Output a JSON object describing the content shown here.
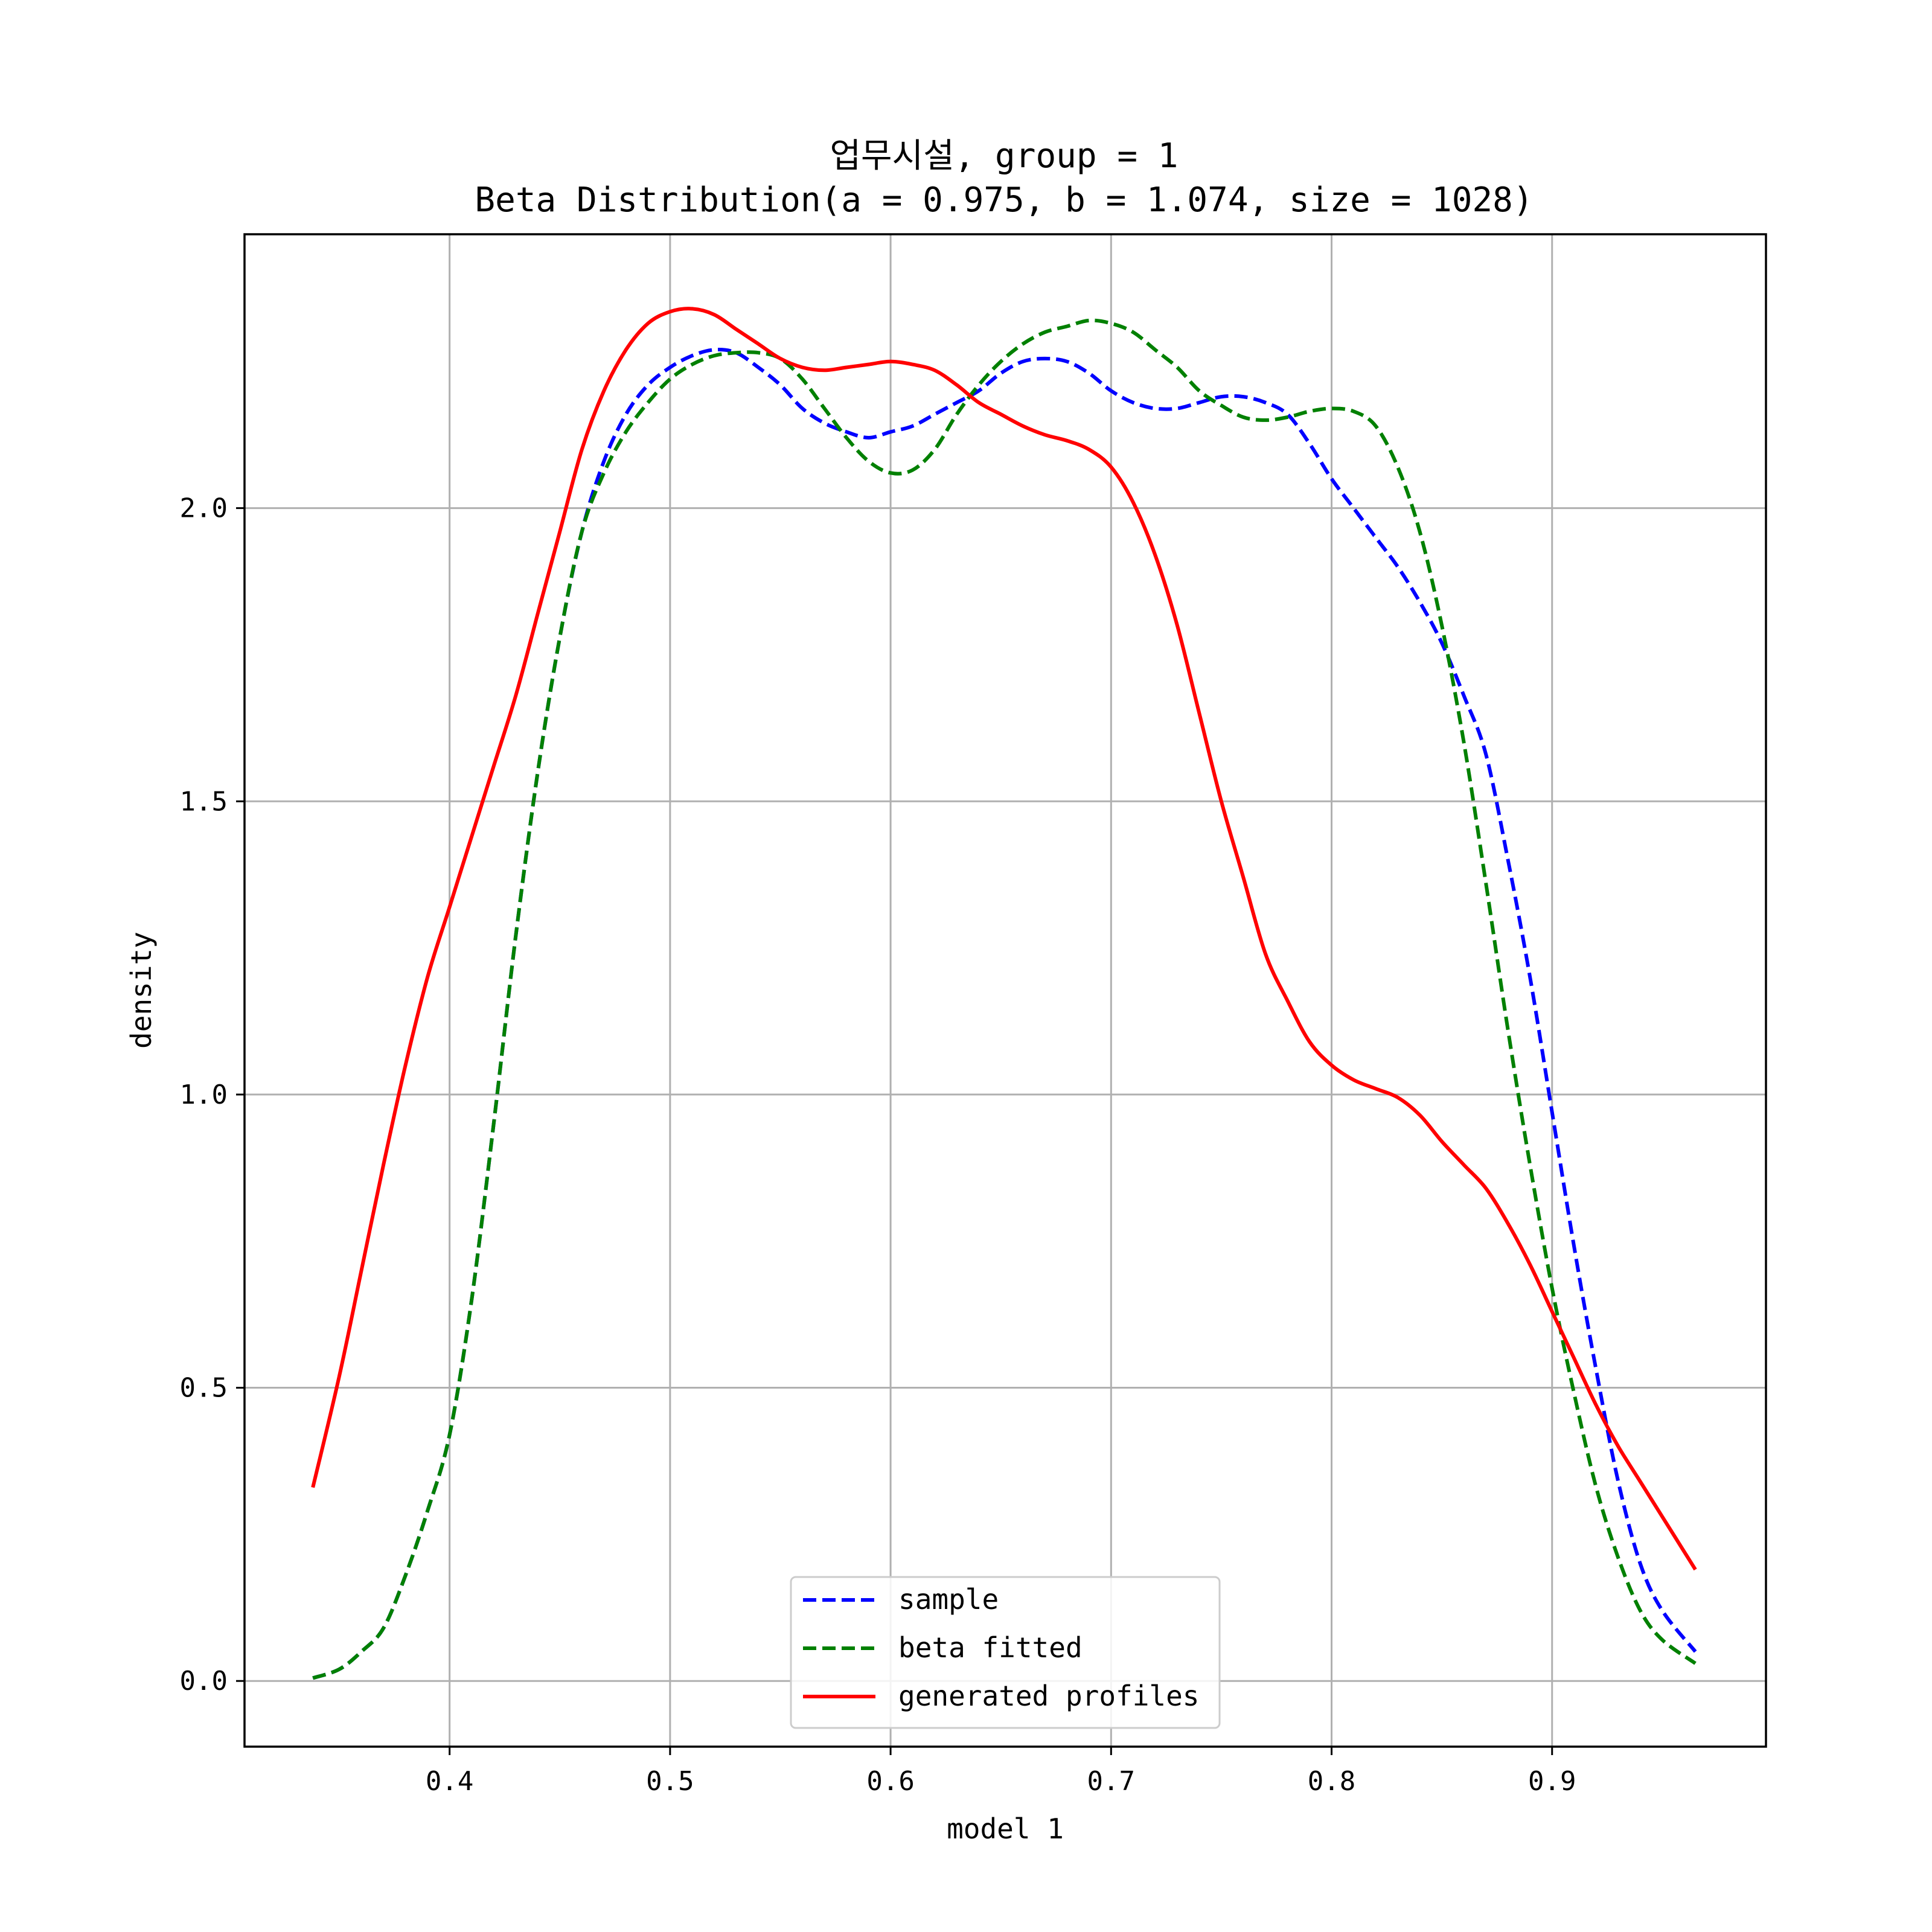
{
  "chart_data": {
    "type": "line",
    "title": "업무시설, group = 1",
    "subtitle": "Beta Distribution(a = 0.975, b = 1.074, size = 1028)",
    "xlabel": "model 1",
    "ylabel": "density",
    "xlim": [
      0.307,
      0.997
    ],
    "ylim": [
      -0.112,
      2.467
    ],
    "xticks": [
      0.4,
      0.5,
      0.6,
      0.7,
      0.8,
      0.9
    ],
    "xtick_labels": [
      "0.4",
      "0.5",
      "0.6",
      "0.7",
      "0.8",
      "0.9"
    ],
    "yticks": [
      0.0,
      0.5,
      1.0,
      1.5,
      2.0
    ],
    "ytick_labels": [
      "0.0",
      "0.5",
      "1.0",
      "1.5",
      "2.0"
    ],
    "grid": true,
    "legend_position": "lower-center",
    "series": [
      {
        "name": "sample",
        "color": "#0000ff",
        "style": "dashed",
        "x": [
          0.338,
          0.35,
          0.36,
          0.37,
          0.38,
          0.39,
          0.4,
          0.41,
          0.42,
          0.43,
          0.44,
          0.45,
          0.46,
          0.47,
          0.48,
          0.49,
          0.5,
          0.51,
          0.52,
          0.53,
          0.54,
          0.55,
          0.56,
          0.57,
          0.58,
          0.59,
          0.6,
          0.61,
          0.62,
          0.63,
          0.64,
          0.65,
          0.66,
          0.67,
          0.68,
          0.69,
          0.7,
          0.71,
          0.72,
          0.73,
          0.74,
          0.75,
          0.76,
          0.77,
          0.78,
          0.79,
          0.8,
          0.81,
          0.82,
          0.83,
          0.84,
          0.85,
          0.86,
          0.87,
          0.88,
          0.89,
          0.9,
          0.91,
          0.92,
          0.93,
          0.94,
          0.95,
          0.965
        ],
        "y": [
          0.005,
          0.02,
          0.05,
          0.09,
          0.18,
          0.29,
          0.42,
          0.65,
          0.95,
          1.27,
          1.55,
          1.78,
          1.96,
          2.08,
          2.16,
          2.21,
          2.24,
          2.26,
          2.27,
          2.265,
          2.24,
          2.21,
          2.17,
          2.145,
          2.13,
          2.12,
          2.13,
          2.14,
          2.16,
          2.18,
          2.2,
          2.23,
          2.25,
          2.255,
          2.25,
          2.23,
          2.2,
          2.18,
          2.17,
          2.17,
          2.18,
          2.19,
          2.19,
          2.18,
          2.16,
          2.11,
          2.05,
          2.0,
          1.95,
          1.9,
          1.84,
          1.77,
          1.68,
          1.58,
          1.4,
          1.2,
          0.97,
          0.74,
          0.53,
          0.34,
          0.2,
          0.12,
          0.05
        ]
      },
      {
        "name": "beta fitted",
        "color": "#008000",
        "style": "dashed",
        "x": [
          0.338,
          0.35,
          0.36,
          0.37,
          0.38,
          0.39,
          0.4,
          0.41,
          0.42,
          0.43,
          0.44,
          0.45,
          0.46,
          0.47,
          0.48,
          0.49,
          0.5,
          0.51,
          0.52,
          0.53,
          0.54,
          0.55,
          0.56,
          0.57,
          0.58,
          0.59,
          0.6,
          0.61,
          0.62,
          0.63,
          0.64,
          0.65,
          0.66,
          0.67,
          0.68,
          0.69,
          0.7,
          0.71,
          0.72,
          0.73,
          0.74,
          0.75,
          0.76,
          0.77,
          0.78,
          0.79,
          0.8,
          0.81,
          0.82,
          0.83,
          0.84,
          0.85,
          0.86,
          0.87,
          0.88,
          0.89,
          0.9,
          0.91,
          0.92,
          0.93,
          0.94,
          0.95,
          0.965
        ],
        "y": [
          0.005,
          0.02,
          0.05,
          0.09,
          0.18,
          0.29,
          0.42,
          0.65,
          0.95,
          1.27,
          1.55,
          1.78,
          1.96,
          2.06,
          2.13,
          2.18,
          2.22,
          2.245,
          2.26,
          2.265,
          2.265,
          2.255,
          2.22,
          2.17,
          2.12,
          2.08,
          2.06,
          2.065,
          2.1,
          2.16,
          2.21,
          2.25,
          2.28,
          2.3,
          2.31,
          2.32,
          2.315,
          2.3,
          2.27,
          2.24,
          2.2,
          2.175,
          2.155,
          2.15,
          2.155,
          2.165,
          2.17,
          2.165,
          2.14,
          2.07,
          1.96,
          1.8,
          1.6,
          1.36,
          1.11,
          0.88,
          0.67,
          0.49,
          0.33,
          0.21,
          0.12,
          0.07,
          0.03
        ]
      },
      {
        "name": "generated profiles",
        "color": "#ff0000",
        "style": "solid",
        "x": [
          0.338,
          0.35,
          0.36,
          0.37,
          0.38,
          0.39,
          0.4,
          0.41,
          0.42,
          0.43,
          0.44,
          0.45,
          0.46,
          0.47,
          0.48,
          0.49,
          0.5,
          0.51,
          0.52,
          0.53,
          0.54,
          0.55,
          0.56,
          0.57,
          0.58,
          0.59,
          0.6,
          0.61,
          0.62,
          0.63,
          0.64,
          0.65,
          0.66,
          0.67,
          0.68,
          0.69,
          0.7,
          0.71,
          0.72,
          0.73,
          0.74,
          0.75,
          0.76,
          0.77,
          0.78,
          0.79,
          0.8,
          0.81,
          0.82,
          0.83,
          0.84,
          0.85,
          0.86,
          0.87,
          0.88,
          0.89,
          0.9,
          0.91,
          0.92,
          0.93,
          0.94,
          0.95,
          0.965
        ],
        "y": [
          0.33,
          0.52,
          0.7,
          0.88,
          1.05,
          1.2,
          1.32,
          1.44,
          1.56,
          1.68,
          1.82,
          1.96,
          2.1,
          2.2,
          2.27,
          2.315,
          2.335,
          2.34,
          2.33,
          2.305,
          2.28,
          2.255,
          2.24,
          2.235,
          2.24,
          2.245,
          2.25,
          2.245,
          2.235,
          2.21,
          2.18,
          2.16,
          2.14,
          2.125,
          2.115,
          2.1,
          2.07,
          2.01,
          1.92,
          1.8,
          1.65,
          1.5,
          1.37,
          1.24,
          1.16,
          1.09,
          1.05,
          1.025,
          1.01,
          0.995,
          0.965,
          0.92,
          0.88,
          0.84,
          0.78,
          0.71,
          0.63,
          0.55,
          0.47,
          0.4,
          0.34,
          0.28,
          0.19
        ]
      }
    ]
  }
}
